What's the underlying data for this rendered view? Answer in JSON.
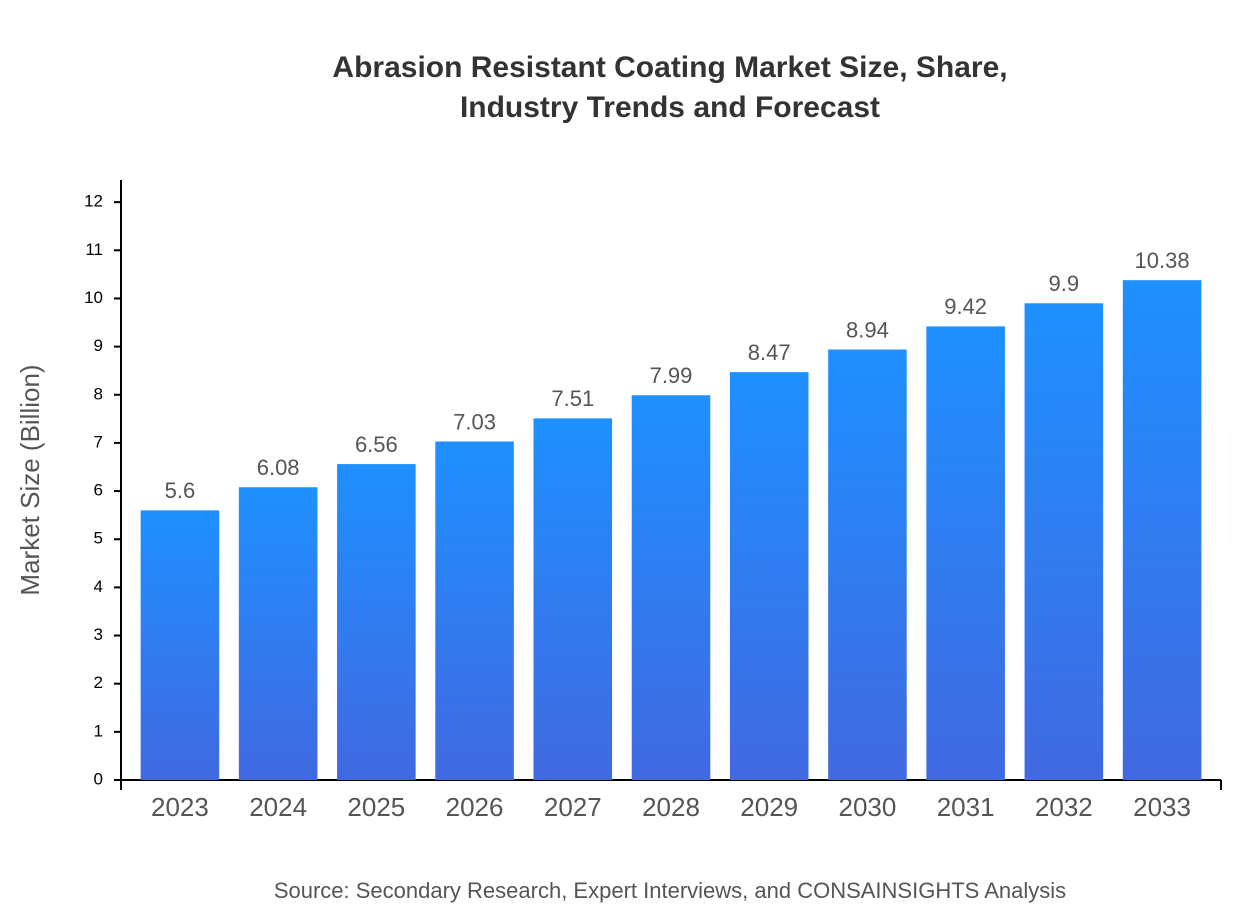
{
  "chart_data": {
    "type": "bar",
    "title": "Abrasion Resistant Coating Market Size, Share, Industry Trends and Forecast",
    "y_label": "Market Size (Billion)",
    "source": "Source: Secondary Research, Expert Interviews, and CONSAINSIGHTS Analysis",
    "categories": [
      "2023",
      "2024",
      "2025",
      "2026",
      "2027",
      "2028",
      "2029",
      "2030",
      "2031",
      "2032",
      "2033"
    ],
    "values": [
      5.6,
      6.08,
      6.56,
      7.03,
      7.51,
      7.99,
      8.47,
      8.94,
      9.42,
      9.9,
      10.38
    ],
    "color": [
      "#1e90ff",
      "#4169e1"
    ],
    "ylim": [
      0,
      12.46
    ],
    "yticks": [
      0,
      1,
      2,
      3,
      4,
      5,
      6,
      7,
      8,
      9,
      10,
      11,
      12
    ],
    "grid": false
  }
}
